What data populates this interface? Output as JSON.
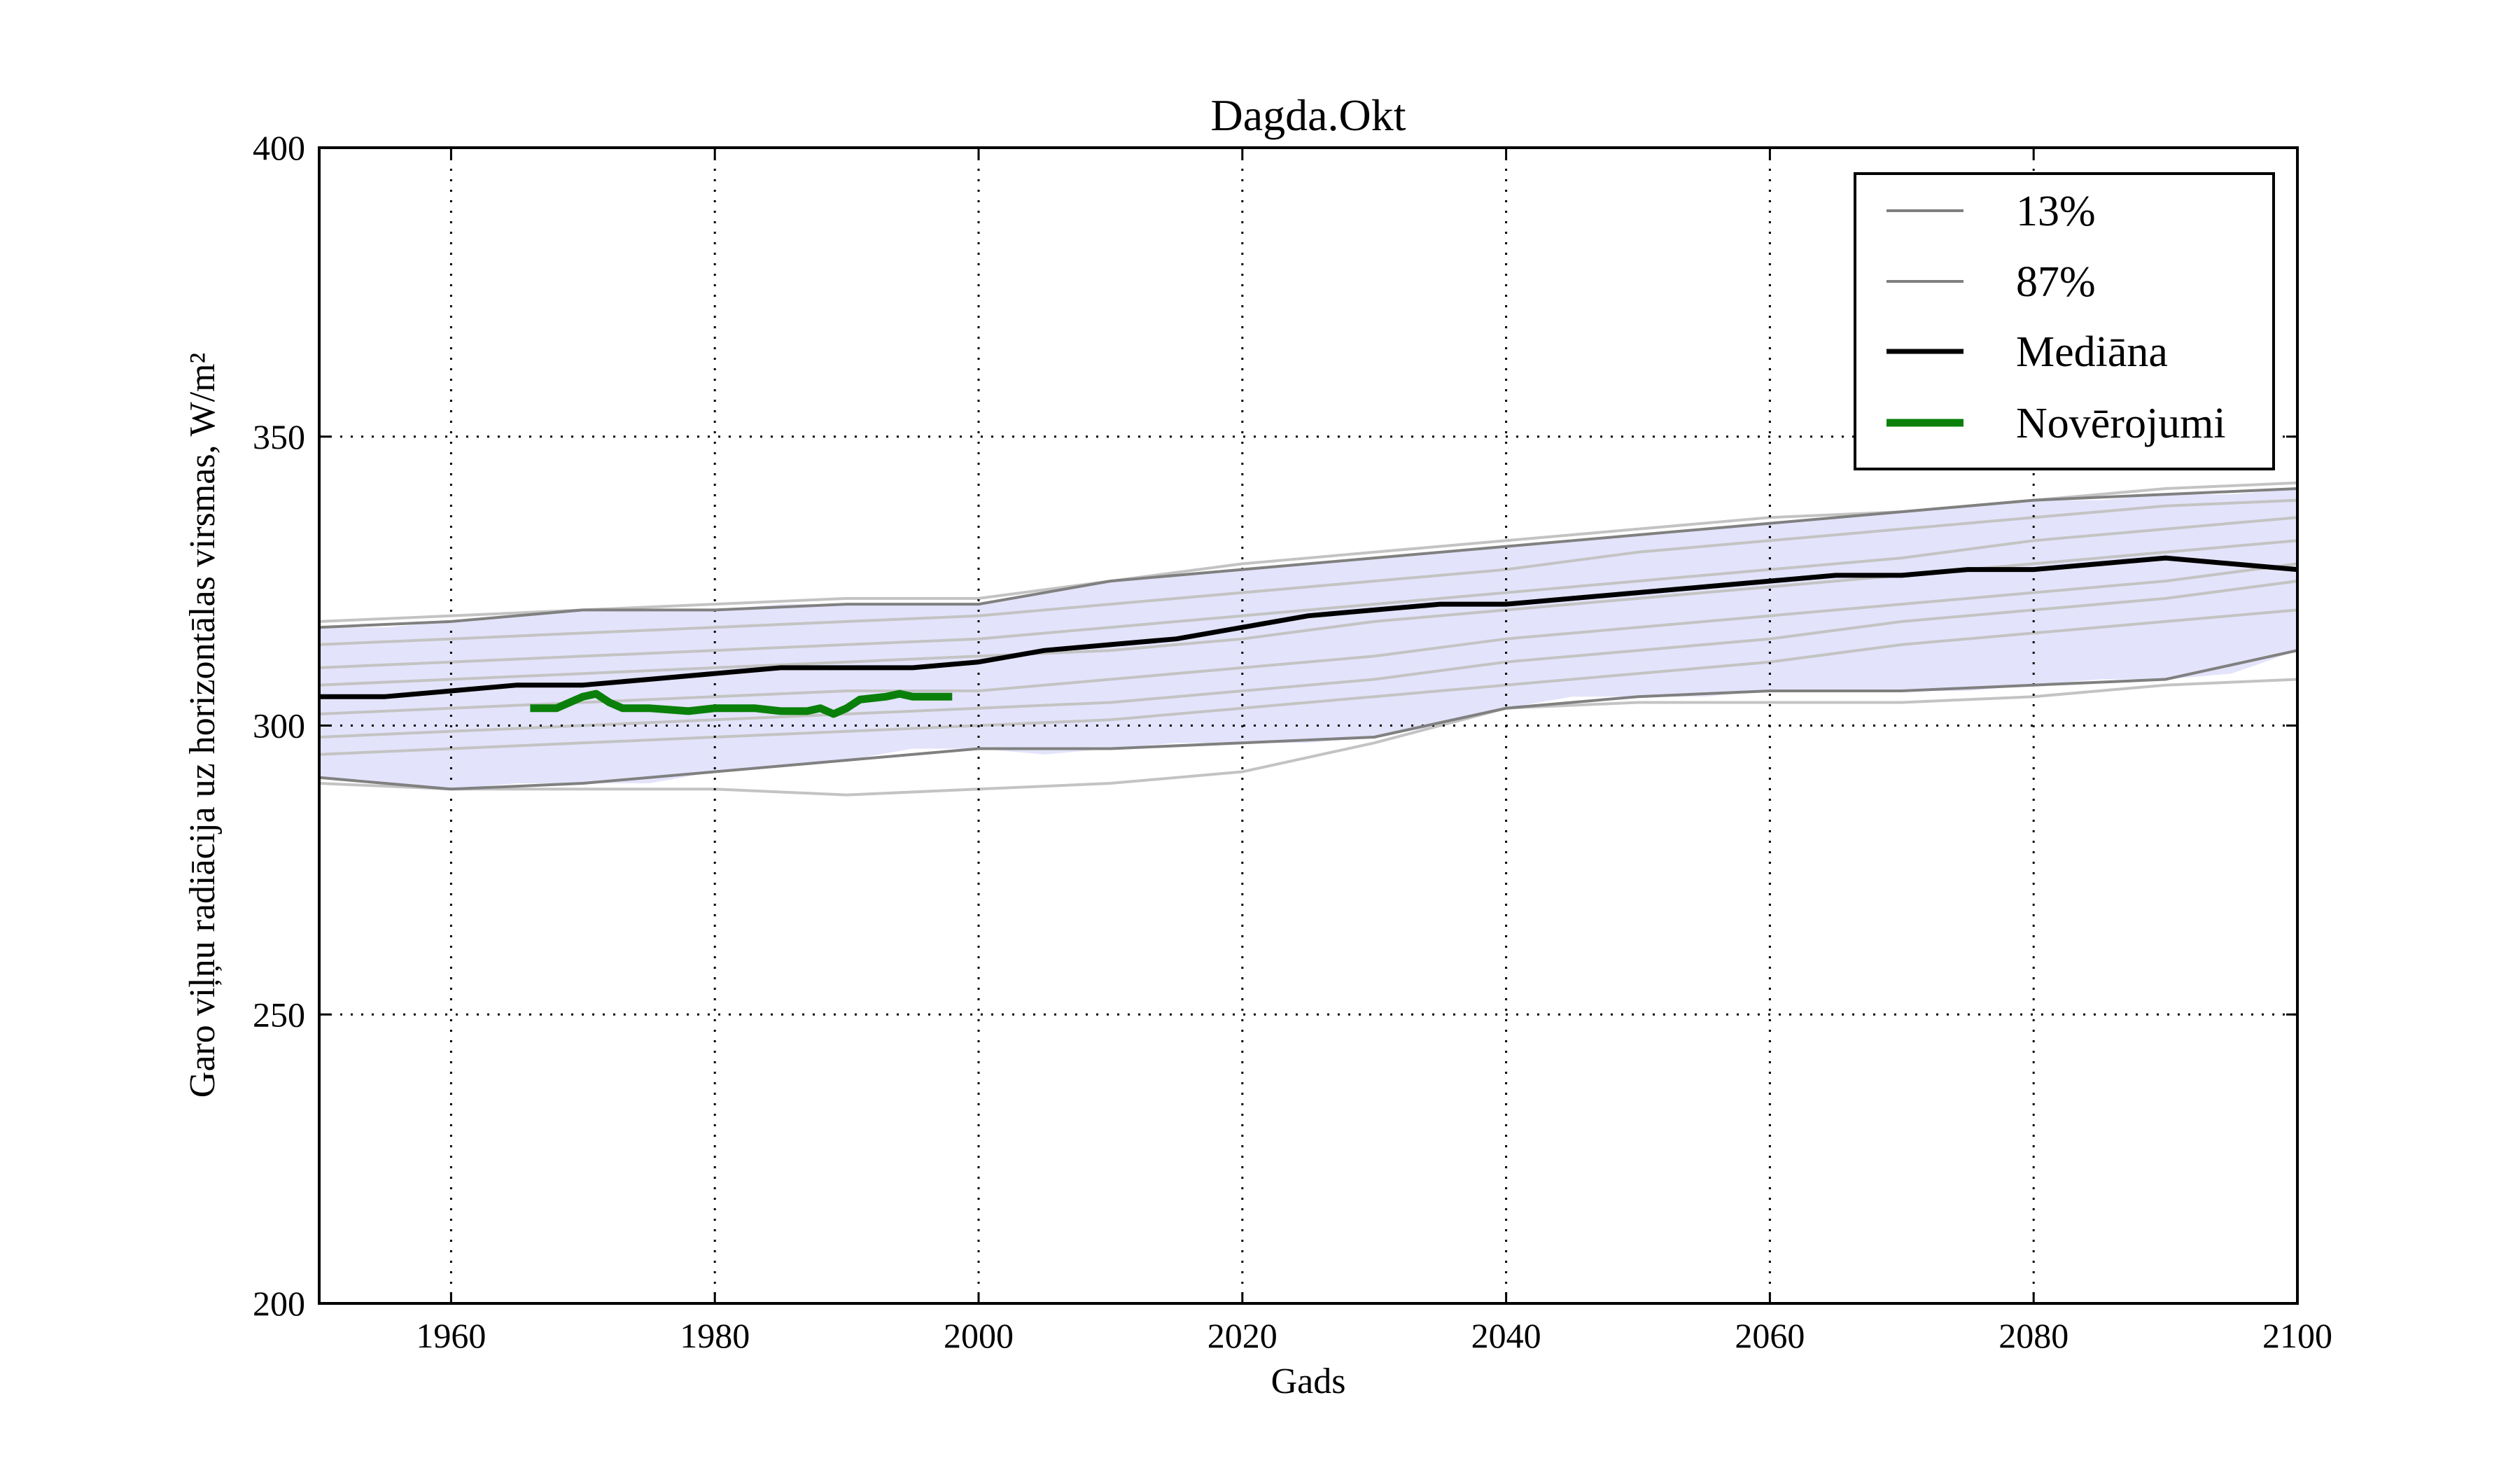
{
  "chart_data": {
    "type": "line",
    "title": "Dagda.Okt",
    "xlabel": "Gads",
    "ylabel": "Garo viļņu radiācija uz horizontālas virsmas, W/m²",
    "xlim": [
      1950,
      2100
    ],
    "ylim": [
      200,
      400
    ],
    "xticks": [
      1960,
      1980,
      2000,
      2020,
      2040,
      2060,
      2080,
      2100
    ],
    "yticks": [
      200,
      250,
      300,
      350,
      400
    ],
    "grid": true,
    "legend_position": "top-right",
    "colors": {
      "band_fill": "#e3e3fb",
      "band_edge": "#808080",
      "ensemble": "#c3c3c3",
      "median": "#000000",
      "observations": "#0a800a"
    },
    "band": {
      "x": [
        1950,
        1955,
        1960,
        1965,
        1970,
        1975,
        1980,
        1985,
        1990,
        1995,
        2000,
        2005,
        2010,
        2015,
        2020,
        2025,
        2030,
        2035,
        2040,
        2045,
        2050,
        2055,
        2060,
        2065,
        2070,
        2075,
        2080,
        2085,
        2090,
        2095,
        2100
      ],
      "lower": [
        291,
        290,
        289,
        290,
        290,
        290,
        292,
        293,
        294,
        296,
        296,
        295,
        296,
        297,
        297,
        297,
        298,
        300,
        303,
        305,
        305,
        305,
        306,
        306,
        306,
        306,
        307,
        308,
        308,
        309,
        313
      ],
      "upper": [
        317,
        317,
        318,
        319,
        320,
        320,
        320,
        321,
        321,
        321,
        321,
        323,
        325,
        326,
        327,
        328,
        329,
        330,
        331,
        332,
        333,
        334,
        335,
        336,
        337,
        338,
        339,
        339,
        340,
        340,
        341
      ]
    },
    "ensemble_x": [
      1950,
      1960,
      1970,
      1980,
      1990,
      2000,
      2010,
      2020,
      2030,
      2040,
      2050,
      2060,
      2070,
      2080,
      2090,
      2100
    ],
    "ensemble": [
      [
        318,
        319,
        320,
        321,
        322,
        322,
        325,
        328,
        330,
        332,
        334,
        336,
        337,
        339,
        341,
        342
      ],
      [
        314,
        315,
        316,
        317,
        318,
        319,
        321,
        323,
        325,
        327,
        330,
        332,
        334,
        336,
        338,
        339
      ],
      [
        310,
        311,
        312,
        313,
        314,
        315,
        317,
        319,
        321,
        323,
        325,
        327,
        329,
        332,
        334,
        336
      ],
      [
        307,
        308,
        309,
        310,
        311,
        312,
        313,
        315,
        318,
        320,
        322,
        324,
        326,
        328,
        330,
        332
      ],
      [
        302,
        303,
        304,
        305,
        306,
        306,
        308,
        310,
        312,
        315,
        317,
        319,
        321,
        323,
        325,
        328
      ],
      [
        298,
        299,
        300,
        301,
        302,
        303,
        304,
        306,
        308,
        311,
        313,
        315,
        318,
        320,
        322,
        325
      ],
      [
        295,
        296,
        297,
        298,
        299,
        300,
        301,
        303,
        305,
        307,
        309,
        311,
        314,
        316,
        318,
        320
      ],
      [
        290,
        289,
        289,
        289,
        288,
        289,
        290,
        292,
        297,
        303,
        304,
        304,
        304,
        305,
        307,
        308
      ]
    ],
    "series": [
      {
        "name": "13%",
        "x": [
          1950,
          1960,
          1970,
          1980,
          1990,
          2000,
          2010,
          2020,
          2030,
          2040,
          2050,
          2060,
          2070,
          2080,
          2090,
          2100
        ],
        "values": [
          291,
          289,
          290,
          292,
          294,
          296,
          296,
          297,
          298,
          303,
          305,
          306,
          306,
          307,
          308,
          313
        ]
      },
      {
        "name": "87%",
        "x": [
          1950,
          1960,
          1970,
          1980,
          1990,
          2000,
          2010,
          2020,
          2030,
          2040,
          2050,
          2060,
          2070,
          2080,
          2090,
          2100
        ],
        "values": [
          317,
          318,
          320,
          320,
          321,
          321,
          325,
          327,
          329,
          331,
          333,
          335,
          337,
          339,
          340,
          341
        ]
      },
      {
        "name": "Mediāna",
        "x": [
          1950,
          1955,
          1960,
          1965,
          1970,
          1975,
          1980,
          1985,
          1990,
          1995,
          2000,
          2005,
          2010,
          2015,
          2020,
          2025,
          2030,
          2035,
          2040,
          2045,
          2050,
          2055,
          2060,
          2065,
          2070,
          2075,
          2080,
          2085,
          2090,
          2095,
          2100
        ],
        "values": [
          305,
          305,
          306,
          307,
          307,
          308,
          309,
          310,
          310,
          310,
          311,
          313,
          314,
          315,
          317,
          319,
          320,
          321,
          321,
          322,
          323,
          324,
          325,
          326,
          326,
          327,
          327,
          328,
          329,
          328,
          327
        ]
      },
      {
        "name": "Novērojumi",
        "x": [
          1966,
          1968,
          1970,
          1971,
          1972,
          1973,
          1975,
          1978,
          1980,
          1983,
          1985,
          1987,
          1988,
          1989,
          1990,
          1991,
          1993,
          1994,
          1995,
          1996,
          1998
        ],
        "values": [
          303,
          303,
          305,
          305.5,
          304,
          303,
          303,
          302.5,
          303,
          303,
          302.5,
          302.5,
          303,
          302,
          303,
          304.5,
          305,
          305.5,
          305,
          305,
          305
        ]
      }
    ]
  }
}
